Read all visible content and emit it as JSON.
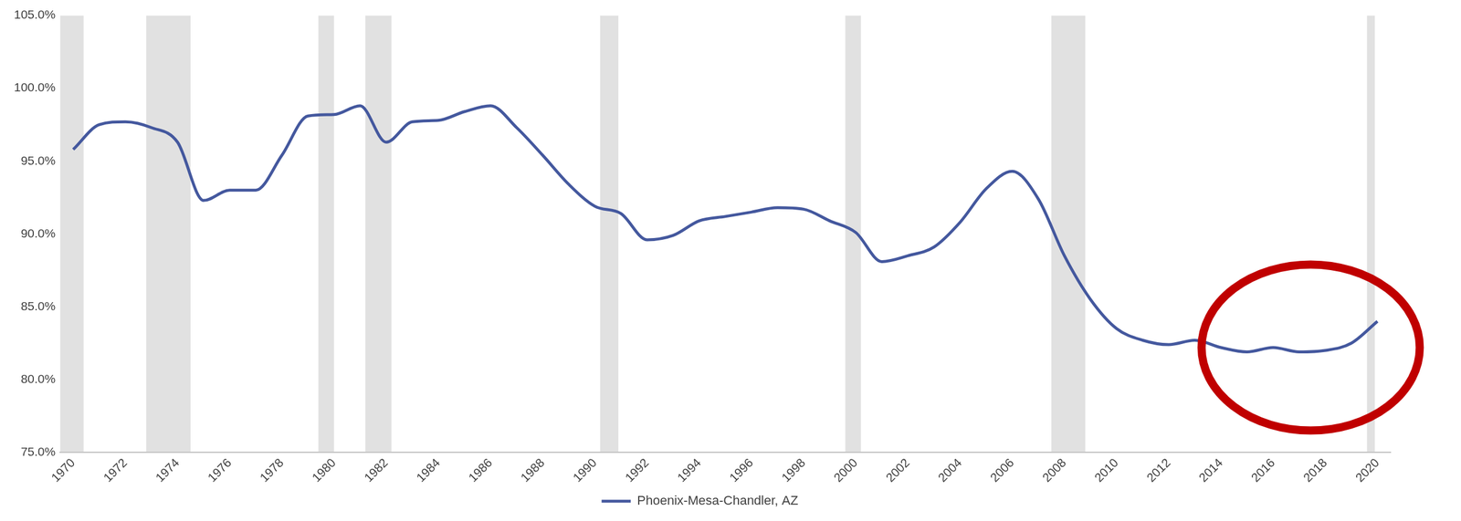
{
  "chart_data": {
    "type": "line",
    "x": [
      1970,
      1971,
      1972,
      1973,
      1974,
      1975,
      1976,
      1977,
      1978,
      1979,
      1980,
      1981,
      1982,
      1983,
      1984,
      1985,
      1986,
      1987,
      1988,
      1989,
      1990,
      1991,
      1992,
      1993,
      1994,
      1995,
      1996,
      1997,
      1998,
      1999,
      2000,
      2001,
      2002,
      2003,
      2004,
      2005,
      2006,
      2007,
      2008,
      2009,
      2010,
      2011,
      2012,
      2013,
      2014,
      2015,
      2016,
      2017,
      2018,
      2019,
      2020
    ],
    "series": [
      {
        "name": "Phoenix-Mesa-Chandler, AZ",
        "color": "#44589e",
        "values": [
          95.8,
          97.5,
          97.7,
          97.3,
          96.3,
          92.3,
          93.0,
          93.0,
          95.4,
          98.1,
          98.2,
          98.8,
          96.3,
          97.7,
          97.8,
          98.4,
          98.8,
          97.3,
          95.4,
          93.4,
          91.9,
          91.4,
          89.6,
          89.9,
          90.9,
          91.2,
          91.5,
          91.8,
          91.7,
          90.9,
          90.1,
          88.1,
          88.5,
          89.1,
          90.8,
          93.1,
          94.3,
          92.4,
          88.5,
          85.5,
          83.5,
          82.7,
          82.4,
          82.7,
          82.2,
          81.9,
          82.2,
          81.9,
          82.0,
          82.5,
          84.0
        ]
      }
    ],
    "recessions": [
      [
        1969.5,
        1970.4
      ],
      [
        1972.8,
        1974.5
      ],
      [
        1979.4,
        1980.0
      ],
      [
        1981.2,
        1982.2
      ],
      [
        1990.2,
        1990.9
      ],
      [
        1999.6,
        2000.2
      ],
      [
        2007.5,
        2008.8
      ],
      [
        2019.6,
        2019.9
      ]
    ],
    "xlim": [
      1969.5,
      2020.5
    ],
    "xticks": [
      1970,
      1972,
      1974,
      1976,
      1978,
      1980,
      1982,
      1984,
      1986,
      1988,
      1990,
      1992,
      1994,
      1996,
      1998,
      2000,
      2002,
      2004,
      2006,
      2008,
      2010,
      2012,
      2014,
      2016,
      2018,
      2020
    ],
    "ylim": [
      75,
      105
    ],
    "yticks": [
      {
        "value": 75,
        "label": "75.0%"
      },
      {
        "value": 80,
        "label": "80.0%"
      },
      {
        "value": 85,
        "label": "85.0%"
      },
      {
        "value": 90,
        "label": "90.0%"
      },
      {
        "value": 95,
        "label": "95.0%"
      },
      {
        "value": 100,
        "label": "100.0%"
      },
      {
        "value": 105,
        "label": "105.0%"
      }
    ],
    "grid": false,
    "legend": "bottom"
  }
}
